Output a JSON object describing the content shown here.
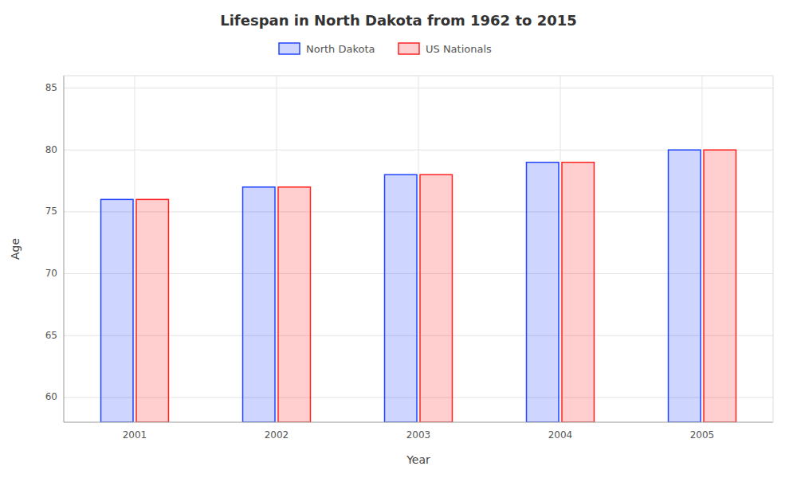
{
  "chart_data": {
    "type": "bar",
    "title": "Lifespan in North Dakota from 1962 to 2015",
    "x_label": "Year",
    "y_label": "Age",
    "categories": [
      "2001",
      "2002",
      "2003",
      "2004",
      "2005"
    ],
    "series": [
      {
        "name": "North Dakota",
        "color": "#2244ff",
        "values": [
          76.0,
          77.0,
          78.0,
          79.0,
          80.0
        ]
      },
      {
        "name": "US Nationals",
        "color": "#ff2222",
        "values": [
          76.0,
          77.0,
          78.0,
          79.0,
          80.0
        ]
      }
    ],
    "ylim": [
      58,
      86
    ],
    "yticks": [
      60,
      65,
      70,
      75,
      80,
      85
    ],
    "grid": true,
    "legend": "top"
  }
}
